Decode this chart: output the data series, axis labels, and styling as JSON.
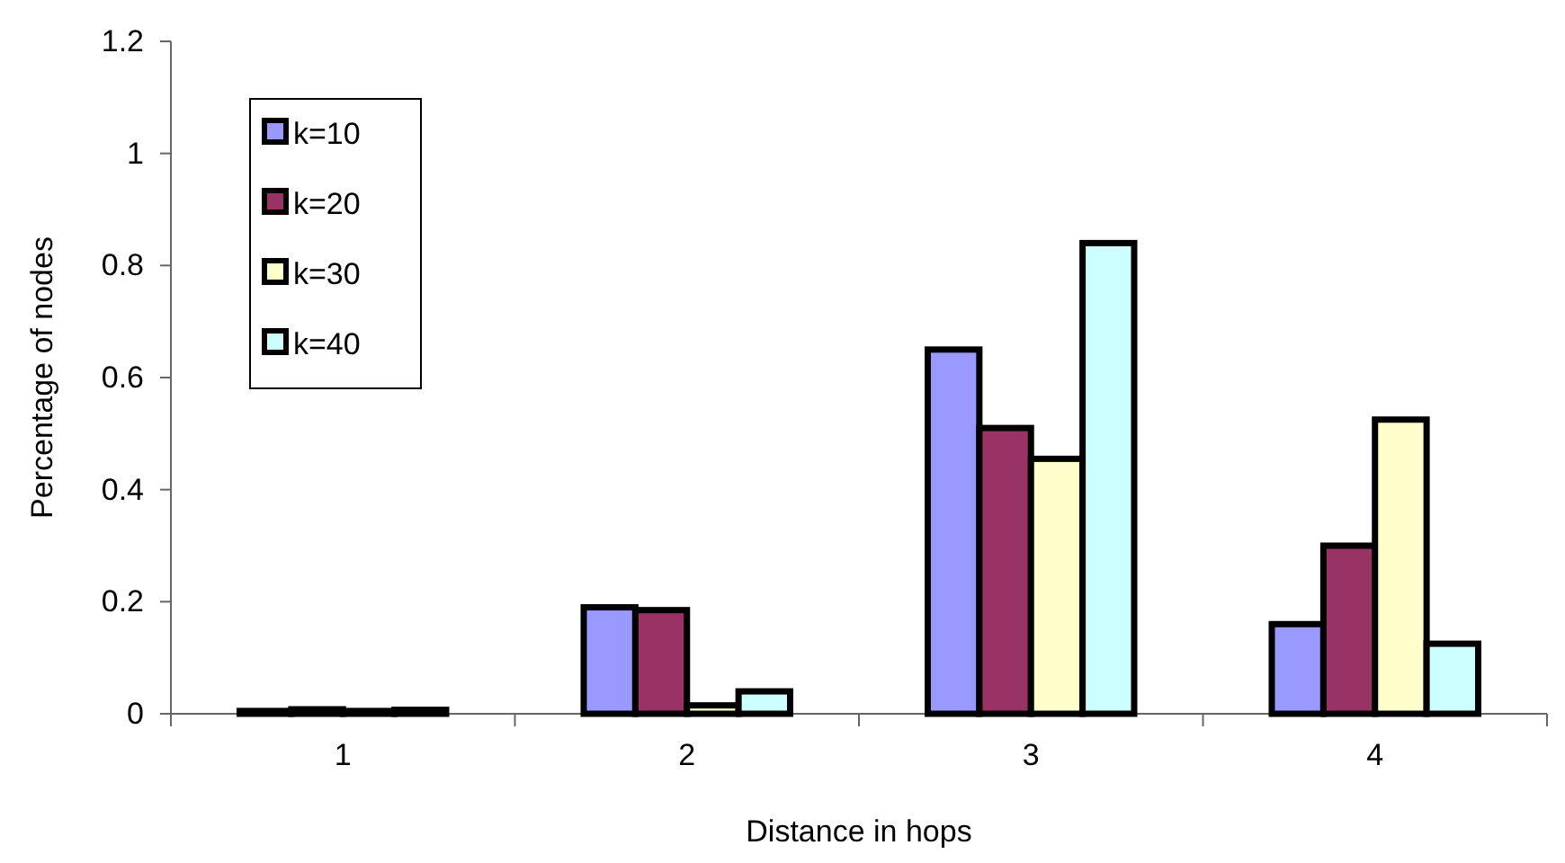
{
  "chart_data": {
    "type": "bar",
    "xlabel": "Distance in hops",
    "ylabel": "Percentage of nodes",
    "categories": [
      "1",
      "2",
      "3",
      "4"
    ],
    "series": [
      {
        "name": "k=10",
        "color": "#9999ff",
        "values": [
          0.005,
          0.19,
          0.65,
          0.16
        ]
      },
      {
        "name": "k=20",
        "color": "#993366",
        "values": [
          0.008,
          0.185,
          0.51,
          0.3
        ]
      },
      {
        "name": "k=30",
        "color": "#ffffcc",
        "values": [
          0.005,
          0.015,
          0.455,
          0.525
        ]
      },
      {
        "name": "k=40",
        "color": "#ccffff",
        "values": [
          0.007,
          0.04,
          0.84,
          0.125
        ]
      }
    ],
    "ylim": [
      0,
      1.2
    ],
    "yticks": [
      0,
      0.2,
      0.4,
      0.6,
      0.8,
      1,
      1.2
    ],
    "grid": false,
    "legend": "top left"
  }
}
